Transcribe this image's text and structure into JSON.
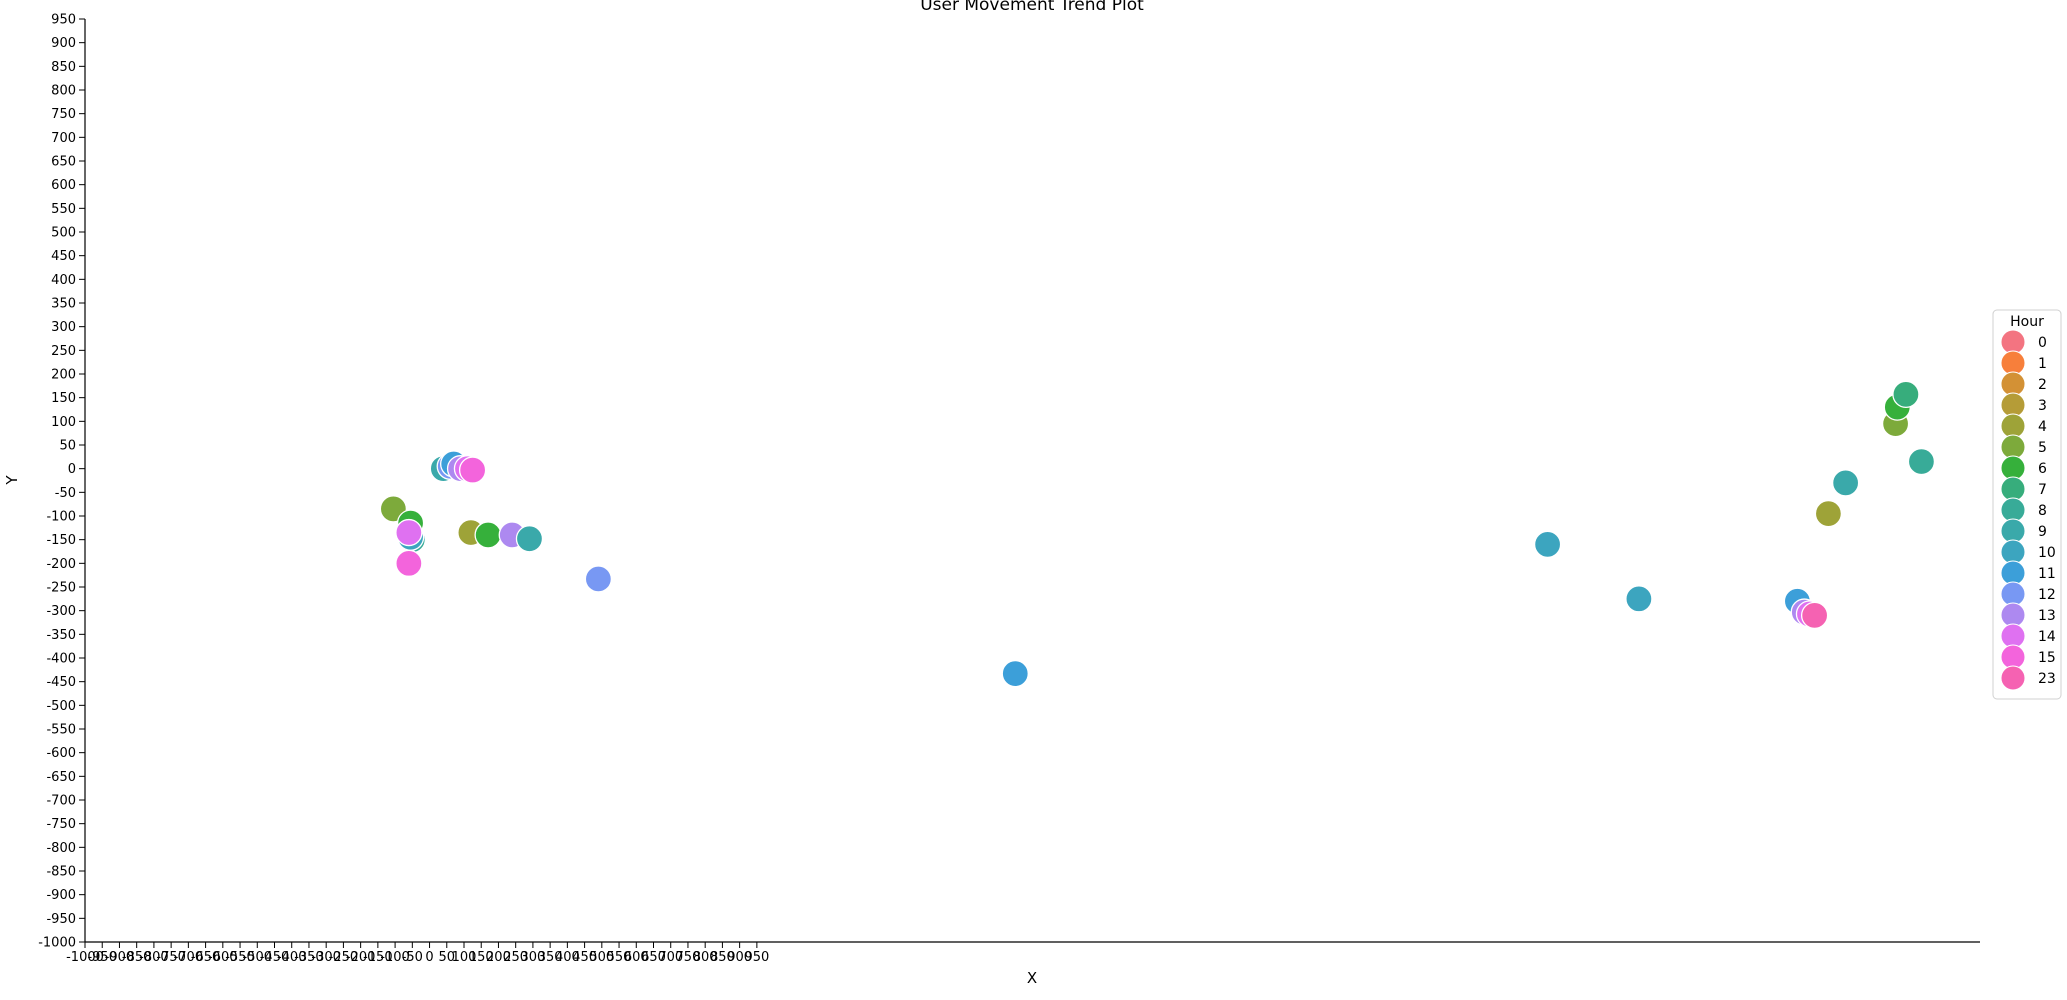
{
  "chart_data": {
    "type": "scatter",
    "title": "User Movement Trend Plot",
    "xlabel": "X",
    "ylabel": "Y",
    "xlim": [
      -1000,
      4500
    ],
    "ylim": [
      -1000,
      950
    ],
    "x_ticks": [
      -1000,
      -950,
      -900,
      -850,
      -800,
      -750,
      -700,
      -650,
      -600,
      -550,
      -500,
      -450,
      -400,
      -350,
      -300,
      -250,
      -200,
      -150,
      -100,
      -50,
      0,
      50,
      100,
      150,
      200,
      250,
      300,
      350,
      400,
      450,
      500,
      550,
      600,
      650,
      700,
      750,
      800,
      850,
      900,
      950
    ],
    "y_ticks": [
      950,
      900,
      850,
      800,
      750,
      700,
      650,
      600,
      550,
      500,
      450,
      400,
      350,
      300,
      250,
      200,
      150,
      100,
      50,
      0,
      -50,
      -100,
      -150,
      -200,
      -250,
      -300,
      -350,
      -400,
      -450,
      -500,
      -550,
      -600,
      -650,
      -700,
      -750,
      -800,
      -850,
      -900,
      -950,
      -1000
    ],
    "grid": false,
    "legend": {
      "title": "Hour",
      "placement": "center-right",
      "entries": [
        {
          "label": "0",
          "color": "#f37481"
        },
        {
          "label": "1",
          "color": "#f77f3b"
        },
        {
          "label": "2",
          "color": "#d39135"
        },
        {
          "label": "3",
          "color": "#b59c37"
        },
        {
          "label": "4",
          "color": "#9ea338"
        },
        {
          "label": "5",
          "color": "#7daa3b"
        },
        {
          "label": "6",
          "color": "#36b03b"
        },
        {
          "label": "7",
          "color": "#37ad7c"
        },
        {
          "label": "8",
          "color": "#38ab98"
        },
        {
          "label": "9",
          "color": "#3aa9aa"
        },
        {
          "label": "10",
          "color": "#3ca5bf"
        },
        {
          "label": "11",
          "color": "#3c9fd9"
        },
        {
          "label": "12",
          "color": "#7898f3"
        },
        {
          "label": "13",
          "color": "#ad89f0"
        },
        {
          "label": "14",
          "color": "#df71f1"
        },
        {
          "label": "15",
          "color": "#f364dc"
        },
        {
          "label": "23",
          "color": "#f562b2"
        }
      ]
    },
    "points": [
      {
        "x": -105,
        "y": -85,
        "hour": "5"
      },
      {
        "x": -55,
        "y": -115,
        "hour": "6"
      },
      {
        "x": -50,
        "y": -150,
        "hour": "8"
      },
      {
        "x": -55,
        "y": -145,
        "hour": "10"
      },
      {
        "x": -60,
        "y": -135,
        "hour": "14"
      },
      {
        "x": -60,
        "y": -200,
        "hour": "15"
      },
      {
        "x": 40,
        "y": 0,
        "hour": "9"
      },
      {
        "x": 60,
        "y": 5,
        "hour": "12"
      },
      {
        "x": 70,
        "y": 10,
        "hour": "11"
      },
      {
        "x": 90,
        "y": 0,
        "hour": "13"
      },
      {
        "x": 110,
        "y": 0,
        "hour": "14"
      },
      {
        "x": 125,
        "y": -3,
        "hour": "15"
      },
      {
        "x": 120,
        "y": -135,
        "hour": "4"
      },
      {
        "x": 170,
        "y": -140,
        "hour": "6"
      },
      {
        "x": 240,
        "y": -140,
        "hour": "13"
      },
      {
        "x": 290,
        "y": -148,
        "hour": "9"
      },
      {
        "x": 490,
        "y": -233,
        "hour": "12"
      },
      {
        "x": 1700,
        "y": -433,
        "hour": "11"
      },
      {
        "x": 3245,
        "y": -160,
        "hour": "10"
      },
      {
        "x": 3510,
        "y": -275,
        "hour": "10"
      },
      {
        "x": 3970,
        "y": -280,
        "hour": "11"
      },
      {
        "x": 3990,
        "y": -303,
        "hour": "13"
      },
      {
        "x": 4005,
        "y": -307,
        "hour": "14"
      },
      {
        "x": 4020,
        "y": -310,
        "hour": "23"
      },
      {
        "x": 4060,
        "y": -95,
        "hour": "4"
      },
      {
        "x": 4110,
        "y": -30,
        "hour": "9"
      },
      {
        "x": 4255,
        "y": 95,
        "hour": "5"
      },
      {
        "x": 4260,
        "y": 130,
        "hour": "6"
      },
      {
        "x": 4285,
        "y": 157,
        "hour": "7"
      },
      {
        "x": 4330,
        "y": 15,
        "hour": "8"
      }
    ]
  }
}
